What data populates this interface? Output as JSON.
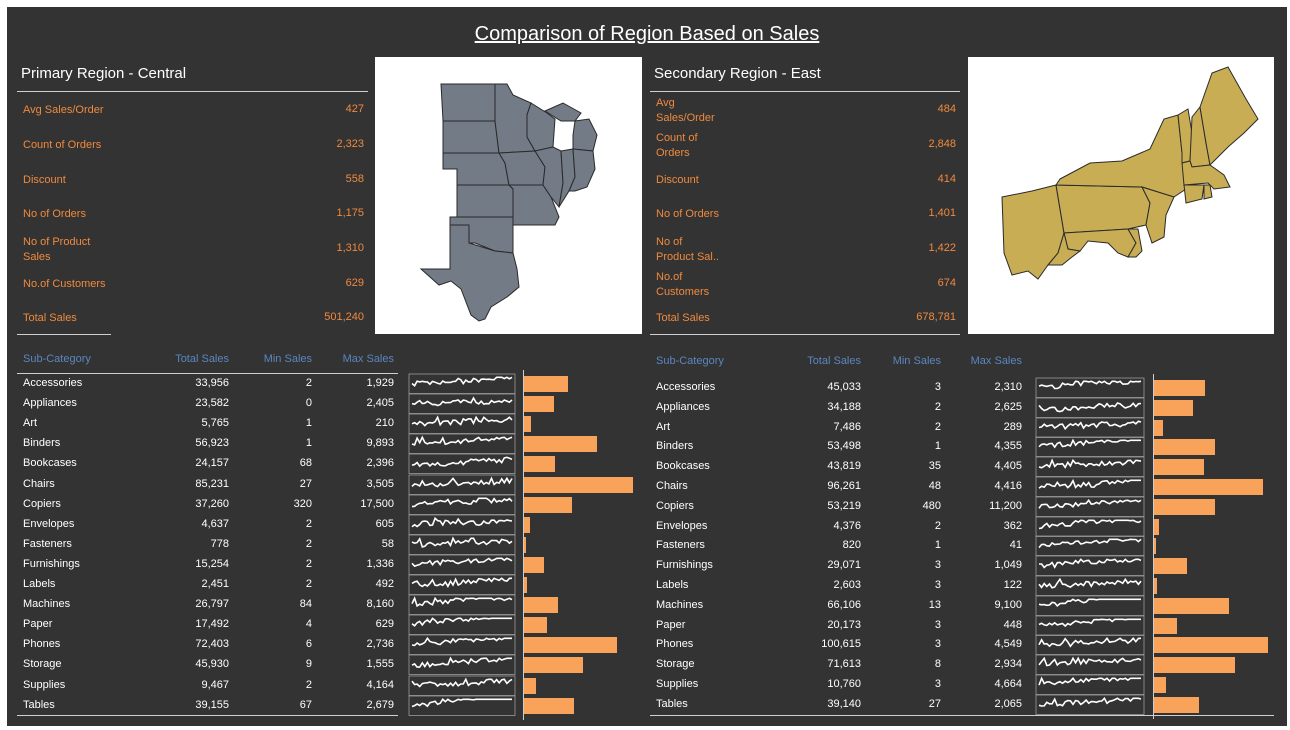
{
  "title": "Comparison of Region Based on Sales",
  "colors": {
    "background": "#333333",
    "kpi": "#f08a3e",
    "header": "#5b86bf",
    "bar": "#f9a25a",
    "central_map": "#727b86",
    "east_map": "#c8ad55"
  },
  "regions": [
    {
      "key": "central",
      "heading": "Primary Region - Central",
      "kpis": [
        {
          "label": "Avg Sales/Order",
          "value": "427"
        },
        {
          "label": "Count of Orders",
          "value": "2,323"
        },
        {
          "label": "Discount",
          "value": "558"
        },
        {
          "label": "No of Orders",
          "value": "1,175"
        },
        {
          "label": "No of Product\nSales",
          "value": "1,310"
        },
        {
          "label": "No.of Customers",
          "value": "629"
        },
        {
          "label": "Total Sales",
          "value": "501,240"
        }
      ],
      "table_headers": [
        "Sub-Category",
        "Total Sales",
        "Min Sales",
        "Max Sales"
      ]
    },
    {
      "key": "east",
      "heading": "Secondary Region - East",
      "kpis": [
        {
          "label": "Avg\nSales/Order",
          "value": "484"
        },
        {
          "label": "Count of\nOrders",
          "value": "2,848"
        },
        {
          "label": "Discount",
          "value": "414"
        },
        {
          "label": "No of Orders",
          "value": "1,401"
        },
        {
          "label": "No of\nProduct Sal..",
          "value": "1,422"
        },
        {
          "label": "No.of\nCustomers",
          "value": "674"
        },
        {
          "label": "Total Sales",
          "value": "678,781"
        }
      ],
      "table_headers": [
        "Sub-Category",
        "Total Sales",
        "Min Sales",
        "Max Sales"
      ]
    }
  ],
  "chart_data": [
    {
      "type": "bar",
      "region": "Central",
      "categories": [
        "Accessories",
        "Appliances",
        "Art",
        "Binders",
        "Bookcases",
        "Chairs",
        "Copiers",
        "Envelopes",
        "Fasteners",
        "Furnishings",
        "Labels",
        "Machines",
        "Paper",
        "Phones",
        "Storage",
        "Supplies",
        "Tables"
      ],
      "total_sales_labels": [
        "33,956",
        "23,582",
        "5,765",
        "56,923",
        "24,157",
        "85,231",
        "37,260",
        "4,637",
        "778",
        "15,254",
        "2,451",
        "26,797",
        "17,492",
        "72,403",
        "45,930",
        "9,467",
        "39,155"
      ],
      "min_sales_labels": [
        "2",
        "0",
        "1",
        "1",
        "68",
        "27",
        "320",
        "2",
        "2",
        "2",
        "2",
        "84",
        "4",
        "6",
        "9",
        "2",
        "67"
      ],
      "max_sales_labels": [
        "1,929",
        "2,405",
        "210",
        "9,893",
        "2,396",
        "3,505",
        "17,500",
        "605",
        "58",
        "1,336",
        "492",
        "8,160",
        "629",
        "2,736",
        "1,555",
        "4,164",
        "2,679"
      ],
      "values": [
        33956,
        23582,
        5765,
        56923,
        24157,
        85231,
        37260,
        4637,
        778,
        15254,
        2451,
        26797,
        17492,
        72403,
        45930,
        9467,
        39155
      ],
      "xlim": [
        0,
        88000
      ]
    },
    {
      "type": "bar",
      "region": "East",
      "categories": [
        "Accessories",
        "Appliances",
        "Art",
        "Binders",
        "Bookcases",
        "Chairs",
        "Copiers",
        "Envelopes",
        "Fasteners",
        "Furnishings",
        "Labels",
        "Machines",
        "Paper",
        "Phones",
        "Storage",
        "Supplies",
        "Tables"
      ],
      "total_sales_labels": [
        "45,033",
        "34,188",
        "7,486",
        "53,498",
        "43,819",
        "96,261",
        "53,219",
        "4,376",
        "820",
        "29,071",
        "2,603",
        "66,106",
        "20,173",
        "100,615",
        "71,613",
        "10,760",
        "39,140"
      ],
      "min_sales_labels": [
        "3",
        "2",
        "2",
        "1",
        "35",
        "48",
        "480",
        "2",
        "1",
        "3",
        "3",
        "13",
        "3",
        "3",
        "8",
        "3",
        "27"
      ],
      "max_sales_labels": [
        "2,310",
        "2,625",
        "289",
        "4,355",
        "4,405",
        "4,416",
        "11,200",
        "362",
        "41",
        "1,049",
        "122",
        "9,100",
        "448",
        "4,549",
        "2,934",
        "4,664",
        "2,065"
      ],
      "values": [
        45033,
        34188,
        7486,
        53498,
        43819,
        96261,
        53219,
        4376,
        820,
        29071,
        2603,
        66106,
        20173,
        100615,
        71613,
        10760,
        39140
      ],
      "xlim": [
        0,
        103000
      ]
    }
  ]
}
